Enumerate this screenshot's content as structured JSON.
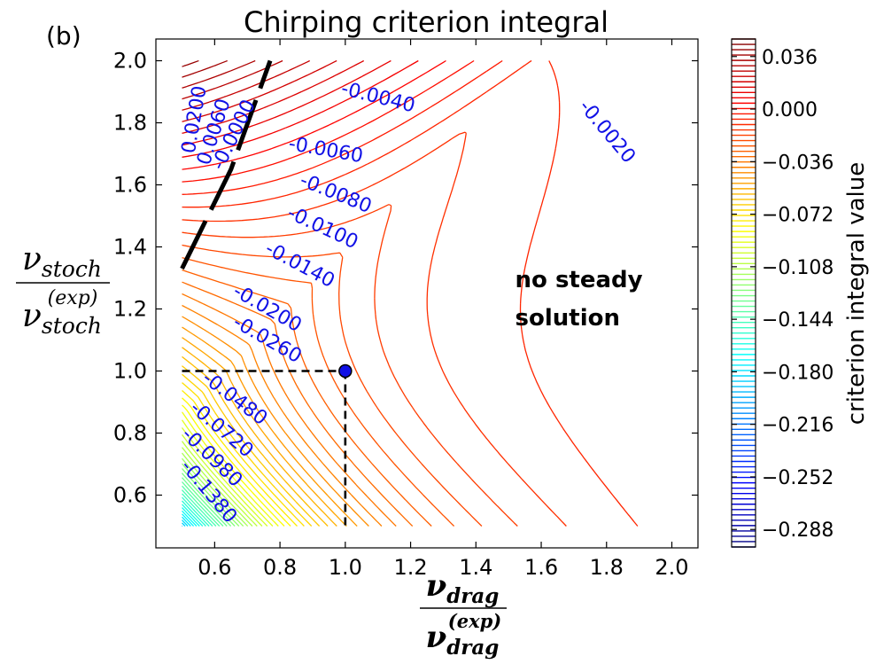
{
  "panel_label": "(b)",
  "chart_data": {
    "type": "contour",
    "title": "Chirping criterion integral",
    "xlabel": {
      "num": "ν",
      "num_sub": "drag",
      "den": "ν",
      "den_sub": "drag",
      "den_sup": "(exp)"
    },
    "ylabel": {
      "num": "ν",
      "num_sub": "stoch",
      "den": "ν",
      "den_sub": "stoch",
      "den_sup": "(exp)"
    },
    "xlim": [
      0.42,
      2.08
    ],
    "ylim": [
      0.43,
      2.07
    ],
    "x_ticks": [
      0.6,
      0.8,
      1.0,
      1.2,
      1.4,
      1.6,
      1.8,
      2.0
    ],
    "x_tick_labels": [
      "0.6",
      "0.8",
      "1.0",
      "1.2",
      "1.4",
      "1.6",
      "1.8",
      "2.0"
    ],
    "y_ticks": [
      0.6,
      0.8,
      1.0,
      1.2,
      1.4,
      1.6,
      1.8,
      2.0
    ],
    "y_tick_labels": [
      "0.6",
      "0.8",
      "1.0",
      "1.2",
      "1.4",
      "1.6",
      "1.8",
      "2.0"
    ],
    "data_domain": {
      "x": [
        0.5,
        2.0
      ],
      "y": [
        0.5,
        2.0
      ]
    },
    "colorbar": {
      "label": "criterion integral value",
      "vmin": -0.3,
      "vmax": 0.048,
      "ticks": [
        0.036,
        0.0,
        -0.036,
        -0.072,
        -0.108,
        -0.144,
        -0.18,
        -0.216,
        -0.252,
        -0.288
      ],
      "tick_labels": [
        "0.036",
        "0.000",
        "−0.036",
        "−0.072",
        "−0.108",
        "−0.144",
        "−0.180",
        "−0.216",
        "−0.252",
        "−0.288"
      ],
      "colormap": "jet"
    },
    "contour_labels": [
      {
        "text": "0.0200",
        "x": 0.54,
        "y": 1.81,
        "rotation": -80
      },
      {
        "text": "0.0060",
        "x": 0.6,
        "y": 1.77,
        "rotation": -72
      },
      {
        "text": "-0.0000",
        "x": 0.66,
        "y": 1.76,
        "rotation": -64
      },
      {
        "text": "-0.0040",
        "x": 1.1,
        "y": 1.88,
        "rotation": 14
      },
      {
        "text": "-0.0020",
        "x": 1.8,
        "y": 1.77,
        "rotation": 50
      },
      {
        "text": "-0.0060",
        "x": 0.94,
        "y": 1.71,
        "rotation": 10
      },
      {
        "text": "-0.0080",
        "x": 0.97,
        "y": 1.57,
        "rotation": 22
      },
      {
        "text": "-0.0100",
        "x": 0.93,
        "y": 1.46,
        "rotation": 25
      },
      {
        "text": "-0.0140",
        "x": 0.86,
        "y": 1.34,
        "rotation": 28
      },
      {
        "text": "-0.0200",
        "x": 0.76,
        "y": 1.2,
        "rotation": 30
      },
      {
        "text": "-0.0260",
        "x": 0.76,
        "y": 1.1,
        "rotation": 30
      },
      {
        "text": "-0.0480",
        "x": 0.66,
        "y": 0.91,
        "rotation": 37
      },
      {
        "text": "-0.0720",
        "x": 0.62,
        "y": 0.81,
        "rotation": 40
      },
      {
        "text": "-0.0980",
        "x": 0.59,
        "y": 0.72,
        "rotation": 44
      },
      {
        "text": "-0.1380",
        "x": 0.58,
        "y": 0.61,
        "rotation": 50
      }
    ],
    "marker": {
      "x": 1.0,
      "y": 1.0
    },
    "reference_lines": [
      {
        "from": [
          0.5,
          1.0
        ],
        "to": [
          1.0,
          1.0
        ],
        "style": "dashed"
      },
      {
        "from": [
          1.0,
          1.0
        ],
        "to": [
          1.0,
          0.5
        ],
        "style": "dashed"
      }
    ],
    "zero_contour": [
      [
        0.5,
        1.33
      ],
      [
        0.65,
        1.65
      ],
      [
        0.77,
        2.0
      ]
    ],
    "annotation": {
      "lines": [
        "no steady",
        "solution"
      ],
      "x": 1.52,
      "y": 1.27
    }
  },
  "colors": {
    "label_text": "#1010e6",
    "marker_fill": "#1010e6",
    "zero_contour": "#000000",
    "reference_line": "#000000"
  }
}
